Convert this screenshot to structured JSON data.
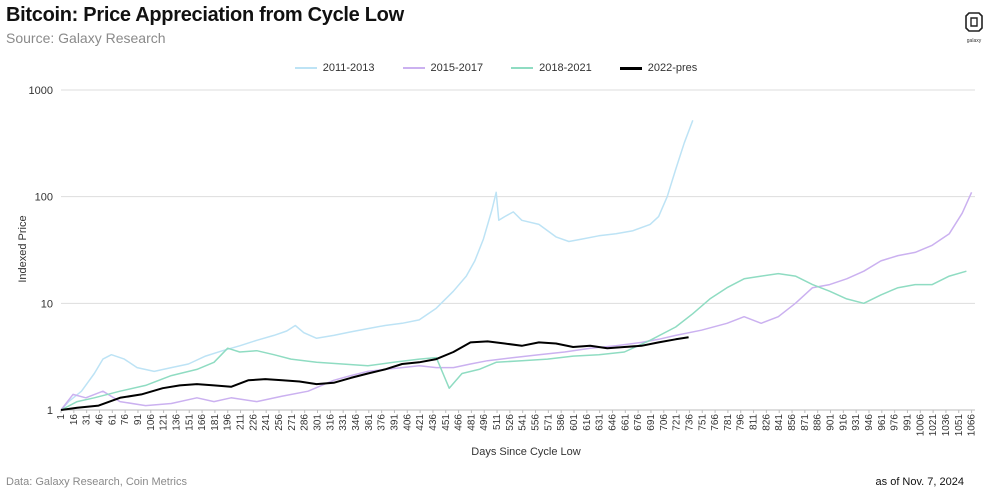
{
  "header": {
    "title": "Bitcoin: Price Appreciation from Cycle Low",
    "subtitle": "Source: Galaxy Research",
    "logo_text": "galaxy"
  },
  "footer": {
    "data_note": "Data: Galaxy Research, Coin Metrics",
    "as_of": "as of Nov. 7, 2024"
  },
  "colors": {
    "s2011": "#bde3f5",
    "s2015": "#cbb1f0",
    "s2018": "#8fdcc2",
    "s2022": "#000000",
    "grid": "#dddddd"
  },
  "chart_data": {
    "type": "line",
    "title": "Bitcoin: Price Appreciation from Cycle Low",
    "xlabel": "Days Since Cycle Low",
    "ylabel": "Indexed Price",
    "yscale": "log",
    "ylim": [
      1,
      1000
    ],
    "xlim": [
      1,
      1070
    ],
    "yticks": [
      1,
      10,
      100,
      1000
    ],
    "xticks": [
      1,
      16,
      31,
      46,
      61,
      76,
      91,
      106,
      121,
      136,
      151,
      166,
      181,
      196,
      211,
      226,
      241,
      256,
      271,
      286,
      301,
      316,
      331,
      346,
      361,
      376,
      391,
      406,
      421,
      436,
      451,
      466,
      481,
      496,
      511,
      526,
      541,
      556,
      571,
      586,
      601,
      616,
      631,
      646,
      661,
      676,
      691,
      706,
      721,
      736,
      751,
      766,
      781,
      796,
      811,
      826,
      841,
      856,
      871,
      886,
      901,
      916,
      931,
      946,
      961,
      976,
      991,
      1006,
      1021,
      1036,
      1051,
      1066
    ],
    "grid": true,
    "legend_position": "top-center",
    "series": [
      {
        "name": "2011-2013",
        "color": "#bde3f5",
        "points": [
          [
            1,
            1.0
          ],
          [
            10,
            1.2
          ],
          [
            25,
            1.5
          ],
          [
            40,
            2.2
          ],
          [
            50,
            3.0
          ],
          [
            60,
            3.3
          ],
          [
            75,
            3.0
          ],
          [
            90,
            2.5
          ],
          [
            110,
            2.3
          ],
          [
            130,
            2.5
          ],
          [
            150,
            2.7
          ],
          [
            170,
            3.2
          ],
          [
            190,
            3.6
          ],
          [
            210,
            4.0
          ],
          [
            230,
            4.5
          ],
          [
            250,
            5.0
          ],
          [
            265,
            5.5
          ],
          [
            275,
            6.2
          ],
          [
            285,
            5.3
          ],
          [
            300,
            4.7
          ],
          [
            320,
            5.0
          ],
          [
            340,
            5.4
          ],
          [
            360,
            5.8
          ],
          [
            380,
            6.2
          ],
          [
            400,
            6.5
          ],
          [
            420,
            7.0
          ],
          [
            440,
            9.0
          ],
          [
            460,
            13
          ],
          [
            475,
            18
          ],
          [
            485,
            25
          ],
          [
            495,
            40
          ],
          [
            505,
            75
          ],
          [
            510,
            110
          ],
          [
            513,
            60
          ],
          [
            520,
            65
          ],
          [
            530,
            72
          ],
          [
            540,
            60
          ],
          [
            560,
            55
          ],
          [
            580,
            42
          ],
          [
            595,
            38
          ],
          [
            610,
            40
          ],
          [
            630,
            43
          ],
          [
            650,
            45
          ],
          [
            670,
            48
          ],
          [
            690,
            55
          ],
          [
            700,
            65
          ],
          [
            710,
            100
          ],
          [
            720,
            180
          ],
          [
            730,
            320
          ],
          [
            740,
            520
          ]
        ]
      },
      {
        "name": "2015-2017",
        "color": "#cbb1f0",
        "points": [
          [
            1,
            1.0
          ],
          [
            15,
            1.4
          ],
          [
            30,
            1.3
          ],
          [
            50,
            1.5
          ],
          [
            70,
            1.2
          ],
          [
            100,
            1.1
          ],
          [
            130,
            1.15
          ],
          [
            160,
            1.3
          ],
          [
            180,
            1.2
          ],
          [
            200,
            1.3
          ],
          [
            230,
            1.2
          ],
          [
            260,
            1.35
          ],
          [
            290,
            1.5
          ],
          [
            320,
            1.9
          ],
          [
            340,
            2.1
          ],
          [
            360,
            2.3
          ],
          [
            380,
            2.4
          ],
          [
            400,
            2.5
          ],
          [
            420,
            2.6
          ],
          [
            440,
            2.5
          ],
          [
            460,
            2.5
          ],
          [
            480,
            2.7
          ],
          [
            500,
            2.9
          ],
          [
            530,
            3.1
          ],
          [
            560,
            3.3
          ],
          [
            590,
            3.5
          ],
          [
            620,
            3.8
          ],
          [
            650,
            4.0
          ],
          [
            680,
            4.3
          ],
          [
            700,
            4.6
          ],
          [
            720,
            5.0
          ],
          [
            750,
            5.6
          ],
          [
            780,
            6.5
          ],
          [
            800,
            7.5
          ],
          [
            820,
            6.5
          ],
          [
            840,
            7.5
          ],
          [
            860,
            10
          ],
          [
            880,
            14
          ],
          [
            900,
            15
          ],
          [
            920,
            17
          ],
          [
            940,
            20
          ],
          [
            960,
            25
          ],
          [
            980,
            28
          ],
          [
            1000,
            30
          ],
          [
            1020,
            35
          ],
          [
            1040,
            45
          ],
          [
            1055,
            70
          ],
          [
            1066,
            110
          ]
        ]
      },
      {
        "name": "2018-2021",
        "color": "#8fdcc2",
        "points": [
          [
            1,
            1.0
          ],
          [
            20,
            1.2
          ],
          [
            40,
            1.3
          ],
          [
            70,
            1.5
          ],
          [
            100,
            1.7
          ],
          [
            130,
            2.1
          ],
          [
            160,
            2.4
          ],
          [
            180,
            2.8
          ],
          [
            196,
            3.8
          ],
          [
            210,
            3.5
          ],
          [
            230,
            3.6
          ],
          [
            250,
            3.3
          ],
          [
            270,
            3.0
          ],
          [
            300,
            2.8
          ],
          [
            330,
            2.7
          ],
          [
            360,
            2.6
          ],
          [
            390,
            2.8
          ],
          [
            420,
            3.0
          ],
          [
            440,
            3.1
          ],
          [
            455,
            1.6
          ],
          [
            470,
            2.2
          ],
          [
            490,
            2.4
          ],
          [
            510,
            2.8
          ],
          [
            540,
            2.9
          ],
          [
            570,
            3.0
          ],
          [
            600,
            3.2
          ],
          [
            630,
            3.3
          ],
          [
            660,
            3.5
          ],
          [
            690,
            4.5
          ],
          [
            720,
            6.0
          ],
          [
            740,
            8.0
          ],
          [
            760,
            11
          ],
          [
            780,
            14
          ],
          [
            800,
            17
          ],
          [
            820,
            18
          ],
          [
            840,
            19
          ],
          [
            860,
            18
          ],
          [
            880,
            15
          ],
          [
            900,
            13
          ],
          [
            920,
            11
          ],
          [
            940,
            10
          ],
          [
            960,
            12
          ],
          [
            980,
            14
          ],
          [
            1000,
            15
          ],
          [
            1020,
            15
          ],
          [
            1040,
            18
          ],
          [
            1060,
            20
          ]
        ]
      },
      {
        "name": "2022-pres",
        "color": "#000000",
        "points": [
          [
            1,
            1.0
          ],
          [
            20,
            1.05
          ],
          [
            45,
            1.1
          ],
          [
            70,
            1.3
          ],
          [
            95,
            1.4
          ],
          [
            120,
            1.6
          ],
          [
            140,
            1.7
          ],
          [
            160,
            1.75
          ],
          [
            180,
            1.7
          ],
          [
            200,
            1.65
          ],
          [
            220,
            1.9
          ],
          [
            240,
            1.95
          ],
          [
            260,
            1.9
          ],
          [
            280,
            1.85
          ],
          [
            300,
            1.75
          ],
          [
            320,
            1.8
          ],
          [
            340,
            2.0
          ],
          [
            360,
            2.2
          ],
          [
            380,
            2.4
          ],
          [
            400,
            2.7
          ],
          [
            420,
            2.8
          ],
          [
            440,
            3.0
          ],
          [
            460,
            3.5
          ],
          [
            480,
            4.3
          ],
          [
            500,
            4.4
          ],
          [
            520,
            4.2
          ],
          [
            540,
            4.0
          ],
          [
            560,
            4.3
          ],
          [
            580,
            4.2
          ],
          [
            600,
            3.9
          ],
          [
            620,
            4.0
          ],
          [
            640,
            3.8
          ],
          [
            660,
            3.9
          ],
          [
            680,
            4.0
          ],
          [
            700,
            4.3
          ],
          [
            720,
            4.6
          ],
          [
            735,
            4.8
          ]
        ]
      }
    ]
  }
}
